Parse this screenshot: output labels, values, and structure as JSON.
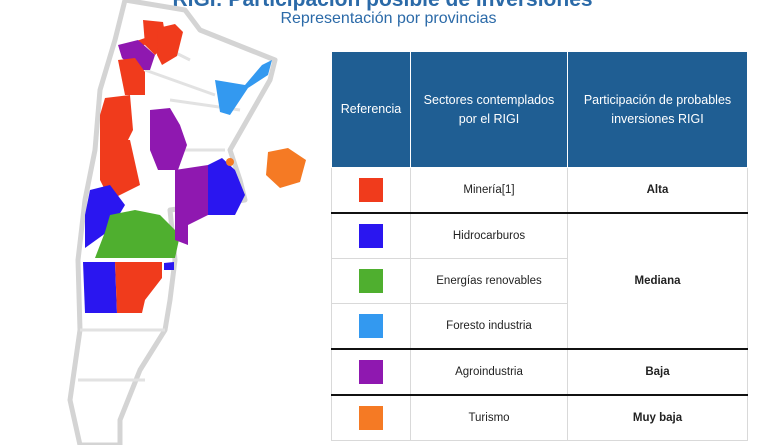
{
  "header": {
    "title": "RIGI: Participación posible de inversiones",
    "subtitle": "Representación por provincias"
  },
  "table": {
    "headers": [
      "Referencia",
      "Sectores contemplados por el RIGI",
      "Participación de probables inversiones RIGI"
    ],
    "rows": [
      {
        "color": "#f03b1c",
        "sector": "Minería[1]",
        "level": "Alta"
      },
      {
        "color": "#2a16f0",
        "sector": "Hidrocarburos",
        "level": "Mediana"
      },
      {
        "color": "#4faf2f",
        "sector": "Energías renovables",
        "level": ""
      },
      {
        "color": "#3399f0",
        "sector": "Foresto industria",
        "level": ""
      },
      {
        "color": "#8f18b0",
        "sector": "Agroindustria",
        "level": "Baja"
      },
      {
        "color": "#f57a24",
        "sector": "Turismo",
        "level": "Muy baja"
      }
    ]
  },
  "colors": {
    "header_bg": "#1f5e93",
    "title_text": "#2b6aa8",
    "map_base": "#ffffff",
    "map_outline": "#d9d9d9"
  }
}
